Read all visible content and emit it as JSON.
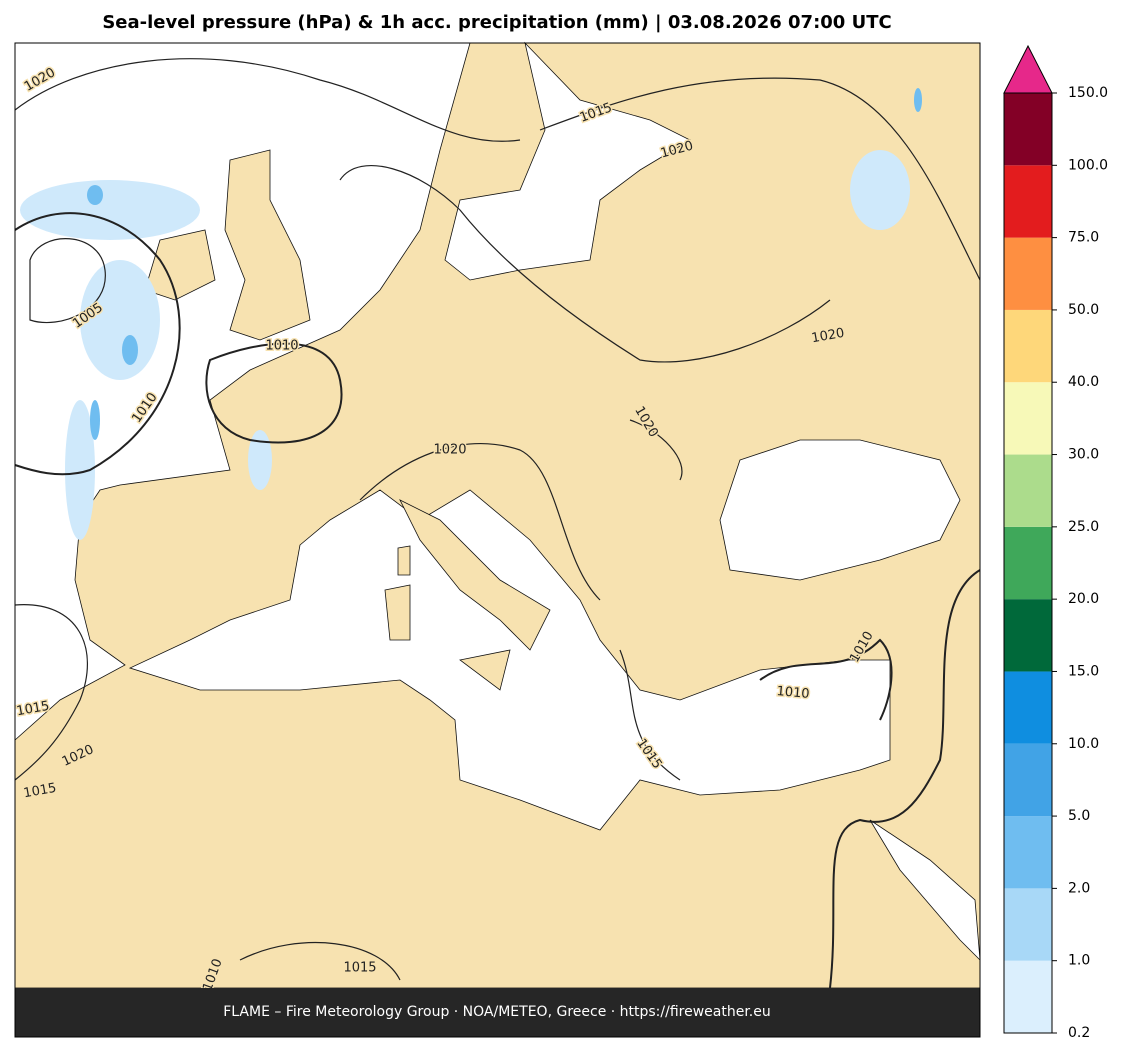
{
  "title": "Sea-level pressure (hPa) & 1h acc. precipitation (mm)  |  03.08.2026 07:00 UTC",
  "contour_labels": [
    "1020",
    "1015",
    "1020",
    "1005",
    "1010",
    "1010",
    "1020",
    "1020",
    "1020",
    "1015",
    "1020",
    "1015",
    "1010",
    "1015",
    "1010",
    "1015",
    "1010"
  ],
  "colorbar": {
    "ticks": [
      {
        "value": 0.2,
        "label": "0.2"
      },
      {
        "value": 1,
        "label": "1.0"
      },
      {
        "value": 2,
        "label": "2.0"
      },
      {
        "value": 5,
        "label": "5.0"
      },
      {
        "value": 10,
        "label": "10.0"
      },
      {
        "value": 15,
        "label": "15.0"
      },
      {
        "value": 20,
        "label": "20.0"
      },
      {
        "value": 25,
        "label": "25.0"
      },
      {
        "value": 30,
        "label": "30.0"
      },
      {
        "value": 40,
        "label": "40.0"
      },
      {
        "value": 50,
        "label": "50.0"
      },
      {
        "value": 75,
        "label": "75.0"
      },
      {
        "value": 100,
        "label": "100.0"
      },
      {
        "value": 150,
        "label": "150.0"
      }
    ],
    "colors": [
      "#dbeffd",
      "#a8d8f7",
      "#6fbdf0",
      "#41a3e6",
      "#0f8ee0",
      "#00693a",
      "#3fa85a",
      "#acdc8c",
      "#f7f9b8",
      "#fed77a",
      "#fe8f41",
      "#e31c1e",
      "#830026"
    ],
    "extend_color": "#e6288a"
  },
  "footer": "FLAME – Fire Meteorology Group · NOA/METEO, Greece · https://fireweather.eu"
}
